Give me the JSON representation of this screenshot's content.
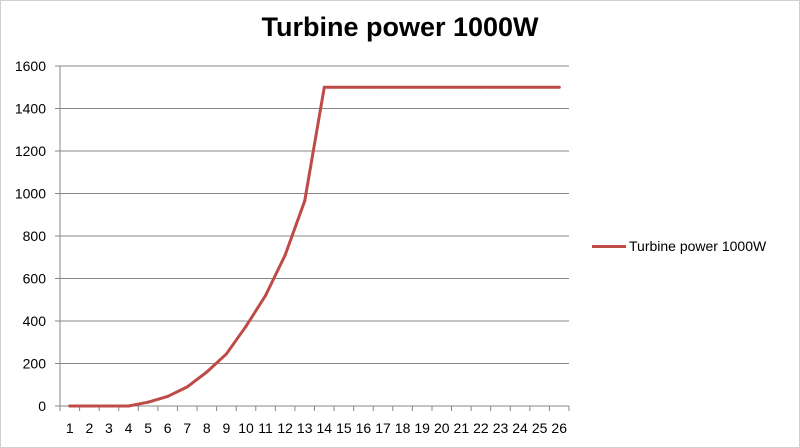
{
  "chart_data": {
    "type": "line",
    "title": "Turbine power 1000W",
    "xlabel": "",
    "ylabel": "",
    "categories": [
      "1",
      "2",
      "3",
      "4",
      "5",
      "6",
      "7",
      "8",
      "9",
      "10",
      "11",
      "12",
      "13",
      "14",
      "15",
      "16",
      "17",
      "18",
      "19",
      "20",
      "21",
      "22",
      "23",
      "24",
      "25",
      "26"
    ],
    "series": [
      {
        "name": "Turbine power 1000W",
        "color": "#be4b48",
        "values": [
          0,
          0,
          0,
          0,
          18,
          45,
          90,
          160,
          245,
          375,
          520,
          710,
          965,
          1500,
          1500,
          1500,
          1500,
          1500,
          1500,
          1500,
          1500,
          1500,
          1500,
          1500,
          1500,
          1500
        ]
      }
    ],
    "ylim": [
      0,
      1600
    ],
    "yticks": [
      0,
      200,
      400,
      600,
      800,
      1000,
      1200,
      1400,
      1600
    ],
    "grid": true,
    "legend_position": "right"
  }
}
